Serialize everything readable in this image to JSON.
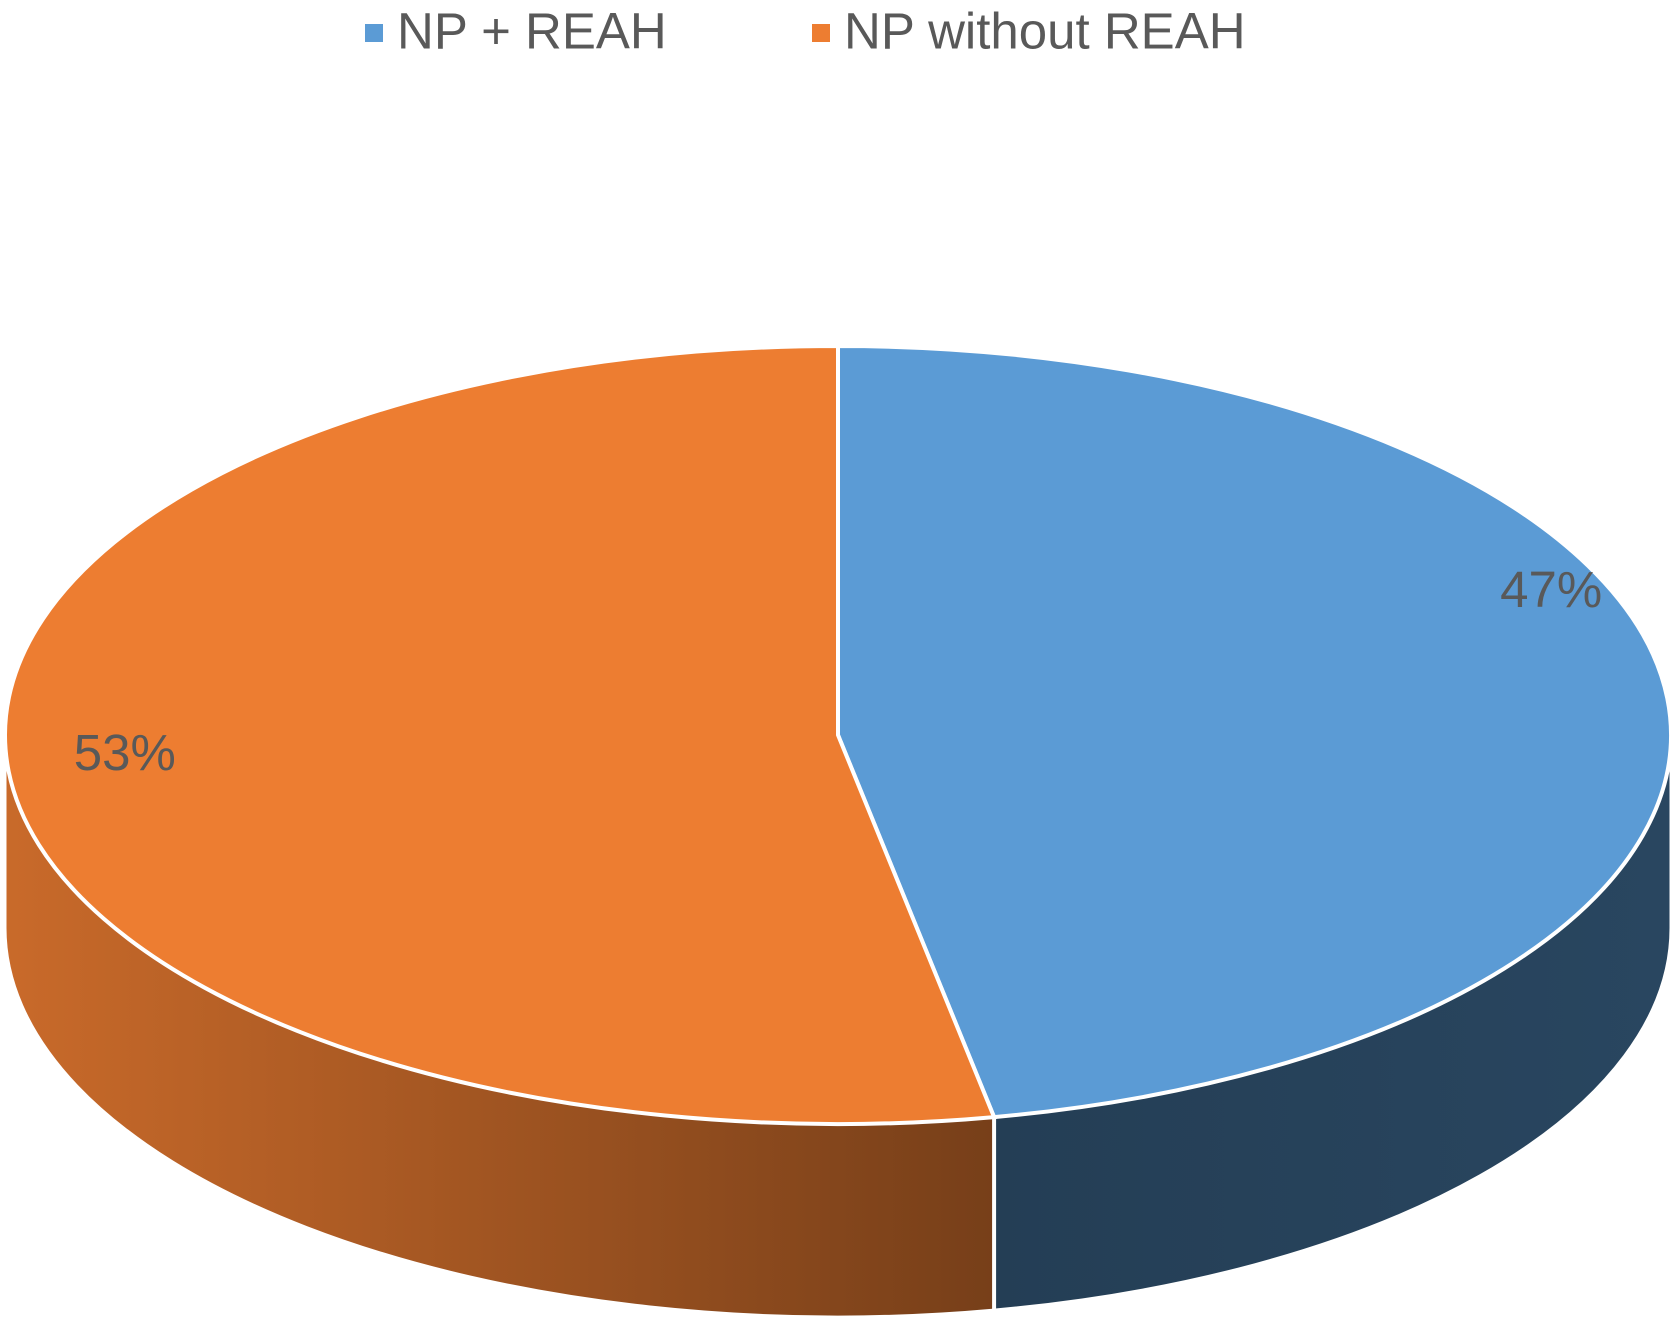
{
  "chart_data": {
    "type": "pie3d",
    "categories": [
      "NP + REAH",
      "NP without REAH"
    ],
    "values": [
      47,
      53
    ],
    "value_labels": [
      "47%",
      "53%"
    ],
    "colors": [
      "#5b9bd5",
      "#ed7d31"
    ],
    "legend": "top"
  }
}
